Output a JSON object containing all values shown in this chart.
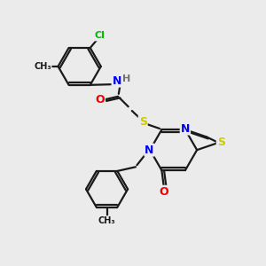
{
  "background_color": "#ebebeb",
  "bond_color": "#1a1a1a",
  "atom_colors": {
    "N": "#0000ee",
    "O": "#ee0000",
    "S": "#cccc00",
    "Cl": "#00bb00",
    "H": "#707070",
    "C": "#1a1a1a"
  },
  "figsize": [
    3.0,
    3.0
  ],
  "dpi": 100
}
